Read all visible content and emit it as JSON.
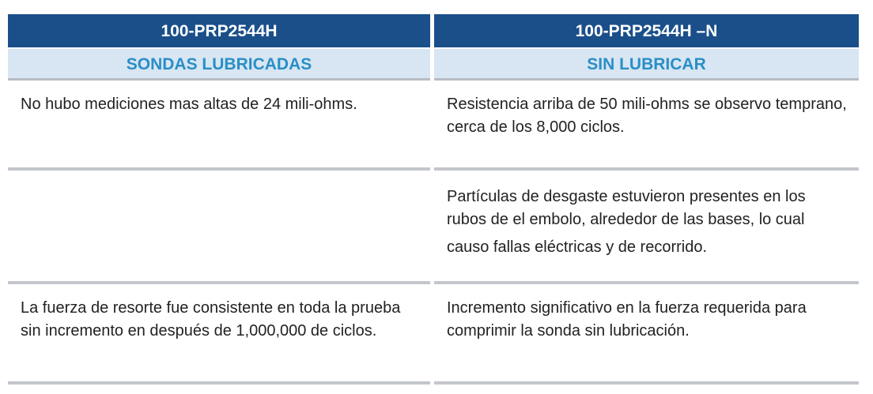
{
  "header": {
    "left_model": "100-PRP2544H",
    "right_model": "100-PRP2544H –N",
    "left_type": "SONDAS LUBRICADAS",
    "right_type": "SIN LUBRICAR"
  },
  "rows": [
    {
      "left": "No hubo mediciones mas altas de 24 mili-ohms.",
      "right": "Resistencia arriba de 50 mili-ohms se observo temprano, cerca de los 8,000 ciclos."
    },
    {
      "left": "",
      "right_lines": [
        "Partículas de desgaste estuvieron presentes en los",
        "rubos de el embolo, alrededor de las bases, lo cual",
        "causo fallas eléctricas y de recorrido."
      ]
    },
    {
      "left": "La fuerza de resorte fue consistente en toda la prueba sin incremento en después de 1,000,000 de ciclos.",
      "right": "Incremento significativo en la fuerza requerida para comprimir la sonda sin lubricación."
    }
  ]
}
